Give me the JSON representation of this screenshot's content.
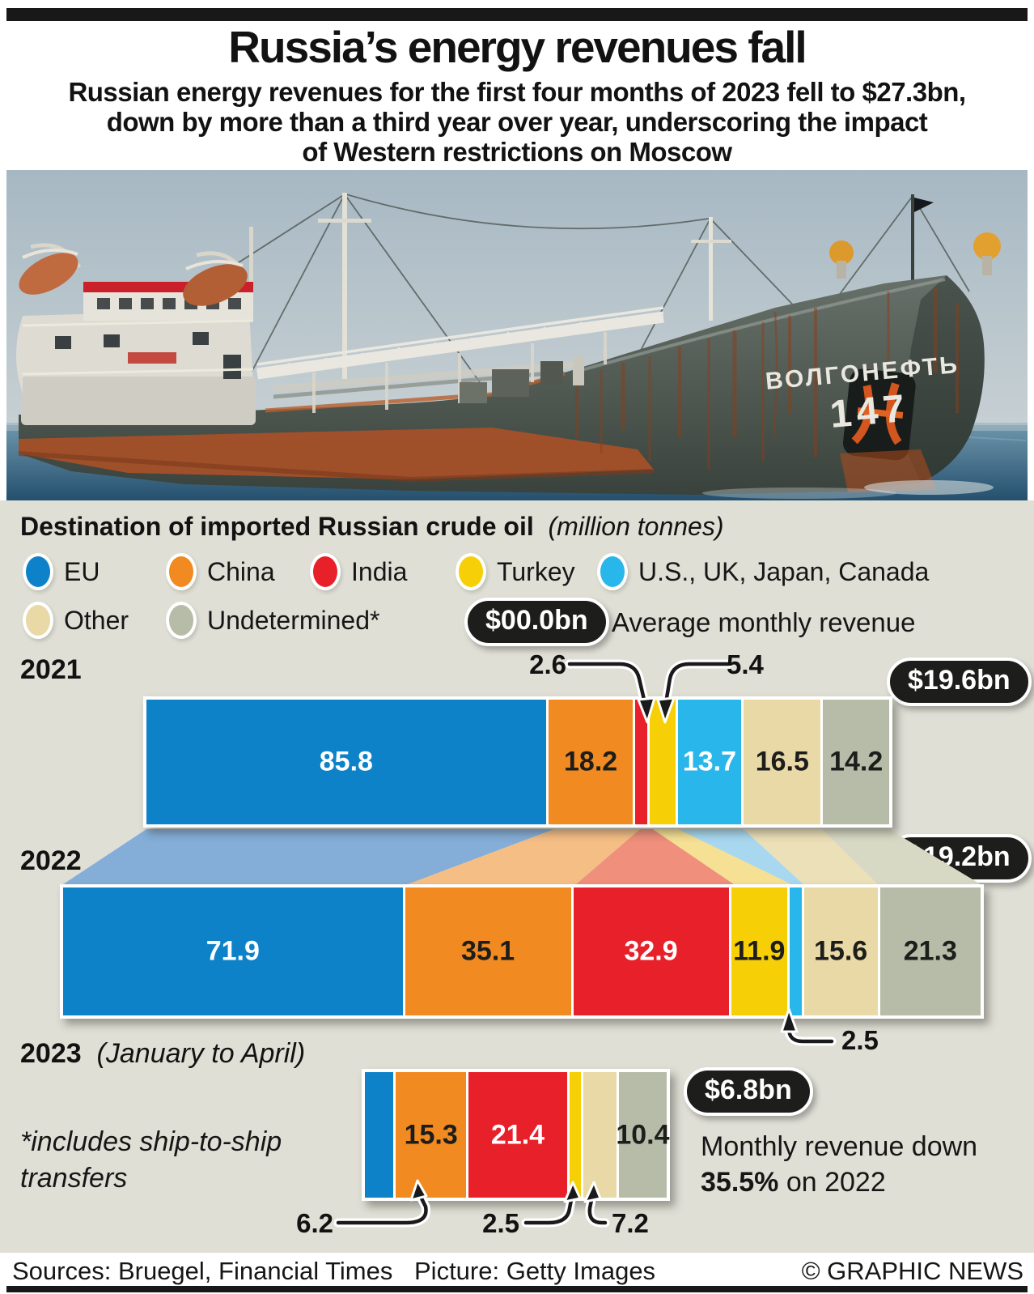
{
  "header": {
    "title": "Russia’s energy revenues fall",
    "subtitle_lines": [
      "Russian energy revenues for the first four months of 2023 fell to $27.3bn,",
      "down by more than a third year over year, underscoring the impact",
      "of Western restrictions on Moscow"
    ]
  },
  "photo": {
    "description": "Rust-streaked Russian river oil tanker at sea, bow view",
    "ship_name": "ВОЛГОНЕФТЬ",
    "ship_number": "147"
  },
  "chart": {
    "section_title": "Destination of imported Russian crude oil",
    "section_unit": "(million tonnes)",
    "colors": {
      "eu": "#0e82c8",
      "china": "#f08a21",
      "india": "#e8202a",
      "turkey": "#f6cf06",
      "us_uk": "#29b6ea",
      "other": "#e9d9a7",
      "undetermined": "#b7bca9"
    },
    "band_colors": {
      "eu": "#84aed8",
      "china": "#f5be85",
      "india": "#ef8f7c",
      "turkey": "#f6e094",
      "us_uk": "#a8d8f0",
      "other": "#ece0b8",
      "undetermined": "#d8d9c5"
    },
    "legend": [
      {
        "key": "eu",
        "label": "EU"
      },
      {
        "key": "china",
        "label": "China"
      },
      {
        "key": "india",
        "label": "India"
      },
      {
        "key": "turkey",
        "label": "Turkey"
      },
      {
        "key": "us_uk",
        "label": "U.S., UK, Japan, Canada"
      },
      {
        "key": "other",
        "label": "Other"
      },
      {
        "key": "undetermined",
        "label": "Undetermined*"
      }
    ],
    "badge_example": {
      "label": "$00.0bn",
      "description": "Average monthly revenue"
    },
    "years": [
      {
        "year": "2021",
        "note": "",
        "badge": "$19.6bn",
        "segments": [
          {
            "key": "eu",
            "value": 85.8,
            "label": "85.8",
            "label_style": "light"
          },
          {
            "key": "china",
            "value": 18.2,
            "label": "18.2",
            "label_style": "dark"
          },
          {
            "key": "india",
            "value": 2.6,
            "label": "",
            "label_style": ""
          },
          {
            "key": "turkey",
            "value": 5.4,
            "label": "",
            "label_style": ""
          },
          {
            "key": "us_uk",
            "value": 13.7,
            "label": "13.7",
            "label_style": "light"
          },
          {
            "key": "other",
            "value": 16.5,
            "label": "16.5",
            "label_style": "dark"
          },
          {
            "key": "undetermined",
            "value": 14.2,
            "label": "14.2",
            "label_style": "dark"
          }
        ]
      },
      {
        "year": "2022",
        "note": "",
        "badge": "$19.2bn",
        "segments": [
          {
            "key": "eu",
            "value": 71.9,
            "label": "71.9",
            "label_style": "light"
          },
          {
            "key": "china",
            "value": 35.1,
            "label": "35.1",
            "label_style": "dark"
          },
          {
            "key": "india",
            "value": 32.9,
            "label": "32.9",
            "label_style": "light"
          },
          {
            "key": "turkey",
            "value": 11.9,
            "label": "11.9",
            "label_style": "dark"
          },
          {
            "key": "us_uk",
            "value": 2.5,
            "label": "",
            "label_style": ""
          },
          {
            "key": "other",
            "value": 15.6,
            "label": "15.6",
            "label_style": "dark"
          },
          {
            "key": "undetermined",
            "value": 21.3,
            "label": "21.3",
            "label_style": "dark"
          }
        ]
      },
      {
        "year": "2023",
        "note": "(January to April)",
        "badge": "$6.8bn",
        "segments": [
          {
            "key": "eu",
            "value": 6.2,
            "label": "",
            "label_style": ""
          },
          {
            "key": "china",
            "value": 15.3,
            "label": "15.3",
            "label_style": "dark"
          },
          {
            "key": "india",
            "value": 21.4,
            "label": "21.4",
            "label_style": "light"
          },
          {
            "key": "turkey",
            "value": 2.5,
            "label": "",
            "label_style": ""
          },
          {
            "key": "other",
            "value": 7.2,
            "label": "",
            "label_style": ""
          },
          {
            "key": "undetermined",
            "value": 10.4,
            "label": "10.4",
            "label_style": "dark"
          }
        ]
      }
    ],
    "callouts": {
      "y2021_india": "2.6",
      "y2021_turkey": "5.4",
      "y2022_us": "2.5",
      "y2023_eu": "6.2",
      "y2023_turkey": "2.5",
      "y2023_other": "7.2"
    },
    "footnote": "*includes ship-to-ship transfers",
    "annotation": {
      "line1": "Monthly revenue down",
      "pct": "35.5%",
      "line2_rest": " on 2022"
    }
  },
  "chart_data": {
    "type": "bar",
    "stacked": true,
    "title": "Destination of imported Russian crude oil",
    "unit": "million tonnes",
    "categories": [
      "2021",
      "2022",
      "2023 (January to April)"
    ],
    "series": [
      {
        "name": "EU",
        "values": [
          85.8,
          71.9,
          6.2
        ]
      },
      {
        "name": "China",
        "values": [
          18.2,
          35.1,
          15.3
        ]
      },
      {
        "name": "India",
        "values": [
          2.6,
          32.9,
          21.4
        ]
      },
      {
        "name": "Turkey",
        "values": [
          5.4,
          11.9,
          2.5
        ]
      },
      {
        "name": "U.S., UK, Japan, Canada",
        "values": [
          13.7,
          2.5,
          0
        ]
      },
      {
        "name": "Other",
        "values": [
          16.5,
          15.6,
          7.2
        ]
      },
      {
        "name": "Undetermined*",
        "values": [
          14.2,
          21.3,
          10.4
        ]
      }
    ],
    "average_monthly_revenue": [
      "$19.6bn",
      "$19.2bn",
      "$6.8bn"
    ],
    "legend_position": "top",
    "notes": "Bar widths proportional to tonnes; ~5.9 px per million tonnes"
  },
  "footer": {
    "sources": "Sources: Bruegel, Financial Times",
    "picture": "Picture: Getty Images",
    "copyright": "© GRAPHIC NEWS"
  }
}
